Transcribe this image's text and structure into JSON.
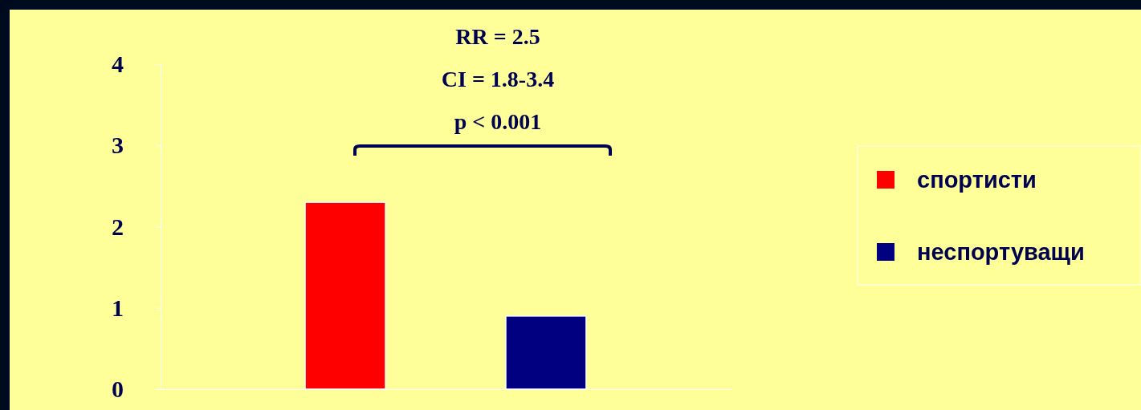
{
  "chart_data": {
    "type": "bar",
    "categories": [
      null
    ],
    "series": [
      {
        "name": "спортисти",
        "color": "#ff0000",
        "values": [
          2.3
        ]
      },
      {
        "name": "неспортуващи",
        "color": "#000080",
        "values": [
          0.9
        ]
      }
    ],
    "ylim": [
      0,
      4
    ],
    "yticks": [
      0,
      1,
      2,
      3,
      4
    ],
    "grid": false,
    "legend": "right",
    "annotations": [
      "RR = 2.5",
      "CI = 1.8-3.4",
      "p < 0.001"
    ]
  }
}
